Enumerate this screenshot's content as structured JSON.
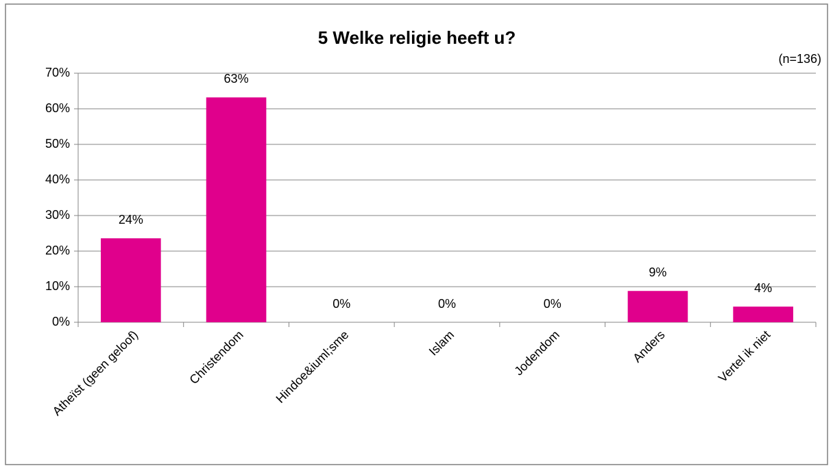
{
  "chart_data": {
    "type": "bar",
    "title": "5 Welke religie heeft u?",
    "subtitle": "(n=136)",
    "categories": [
      "Atheïst (geen geloof)",
      "Christendom",
      "Hindoe&iuml;sme",
      "Islam",
      "Jodendom",
      "Anders",
      "Vertel ik niet"
    ],
    "values": [
      23.6,
      63.2,
      0,
      0,
      0,
      8.8,
      4.4
    ],
    "value_labels": [
      "24%",
      "63%",
      "0%",
      "0%",
      "0%",
      "9%",
      "4%"
    ],
    "color": "#e0008c",
    "ylim": [
      0,
      70
    ],
    "yticks": [
      {
        "value": 0,
        "label": "0%"
      },
      {
        "value": 10,
        "label": "10%"
      },
      {
        "value": 20,
        "label": "20%"
      },
      {
        "value": 30,
        "label": "30%"
      },
      {
        "value": 40,
        "label": "40%"
      },
      {
        "value": 50,
        "label": "50%"
      },
      {
        "value": 60,
        "label": "60%"
      },
      {
        "value": 70,
        "label": "70%"
      }
    ],
    "grid": true
  }
}
